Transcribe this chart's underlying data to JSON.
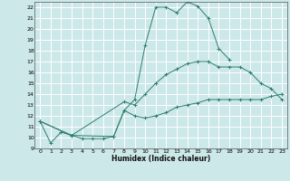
{
  "xlabel": "Humidex (Indice chaleur)",
  "bg_color": "#cce8e8",
  "grid_color": "#ffffff",
  "line_color": "#2e7d6e",
  "xlim": [
    -0.5,
    23.5
  ],
  "ylim": [
    9,
    22.5
  ],
  "xticks": [
    0,
    1,
    2,
    3,
    4,
    5,
    6,
    7,
    8,
    9,
    10,
    11,
    12,
    13,
    14,
    15,
    16,
    17,
    18,
    19,
    20,
    21,
    22,
    23
  ],
  "yticks": [
    9,
    10,
    11,
    12,
    13,
    14,
    15,
    16,
    17,
    18,
    19,
    20,
    21,
    22
  ],
  "line1_x": [
    0,
    1,
    2,
    3,
    4,
    5,
    6,
    7,
    8,
    9,
    10,
    11,
    12,
    13,
    14,
    15,
    16,
    17,
    18
  ],
  "line1_y": [
    11.5,
    9.5,
    10.5,
    10.2,
    9.9,
    9.9,
    9.9,
    10.1,
    12.5,
    13.5,
    18.5,
    22.0,
    22.0,
    21.5,
    22.5,
    22.1,
    21.0,
    18.2,
    17.2
  ],
  "line2_x": [
    0,
    3,
    8,
    9,
    10,
    11,
    12,
    13,
    14,
    15,
    16,
    17,
    18,
    19,
    20,
    21,
    22,
    23
  ],
  "line2_y": [
    11.5,
    10.2,
    13.3,
    13.0,
    14.0,
    15.0,
    15.8,
    16.3,
    16.8,
    17.0,
    17.0,
    16.5,
    16.5,
    16.5,
    16.0,
    15.0,
    14.5,
    13.5
  ],
  "line3_x": [
    0,
    3,
    7,
    8,
    9,
    10,
    11,
    12,
    13,
    14,
    15,
    16,
    17,
    18,
    19,
    20,
    21,
    22,
    23
  ],
  "line3_y": [
    11.5,
    10.2,
    10.1,
    12.5,
    12.0,
    11.8,
    12.0,
    12.3,
    12.8,
    13.0,
    13.2,
    13.5,
    13.5,
    13.5,
    13.5,
    13.5,
    13.5,
    13.8,
    14.0
  ]
}
